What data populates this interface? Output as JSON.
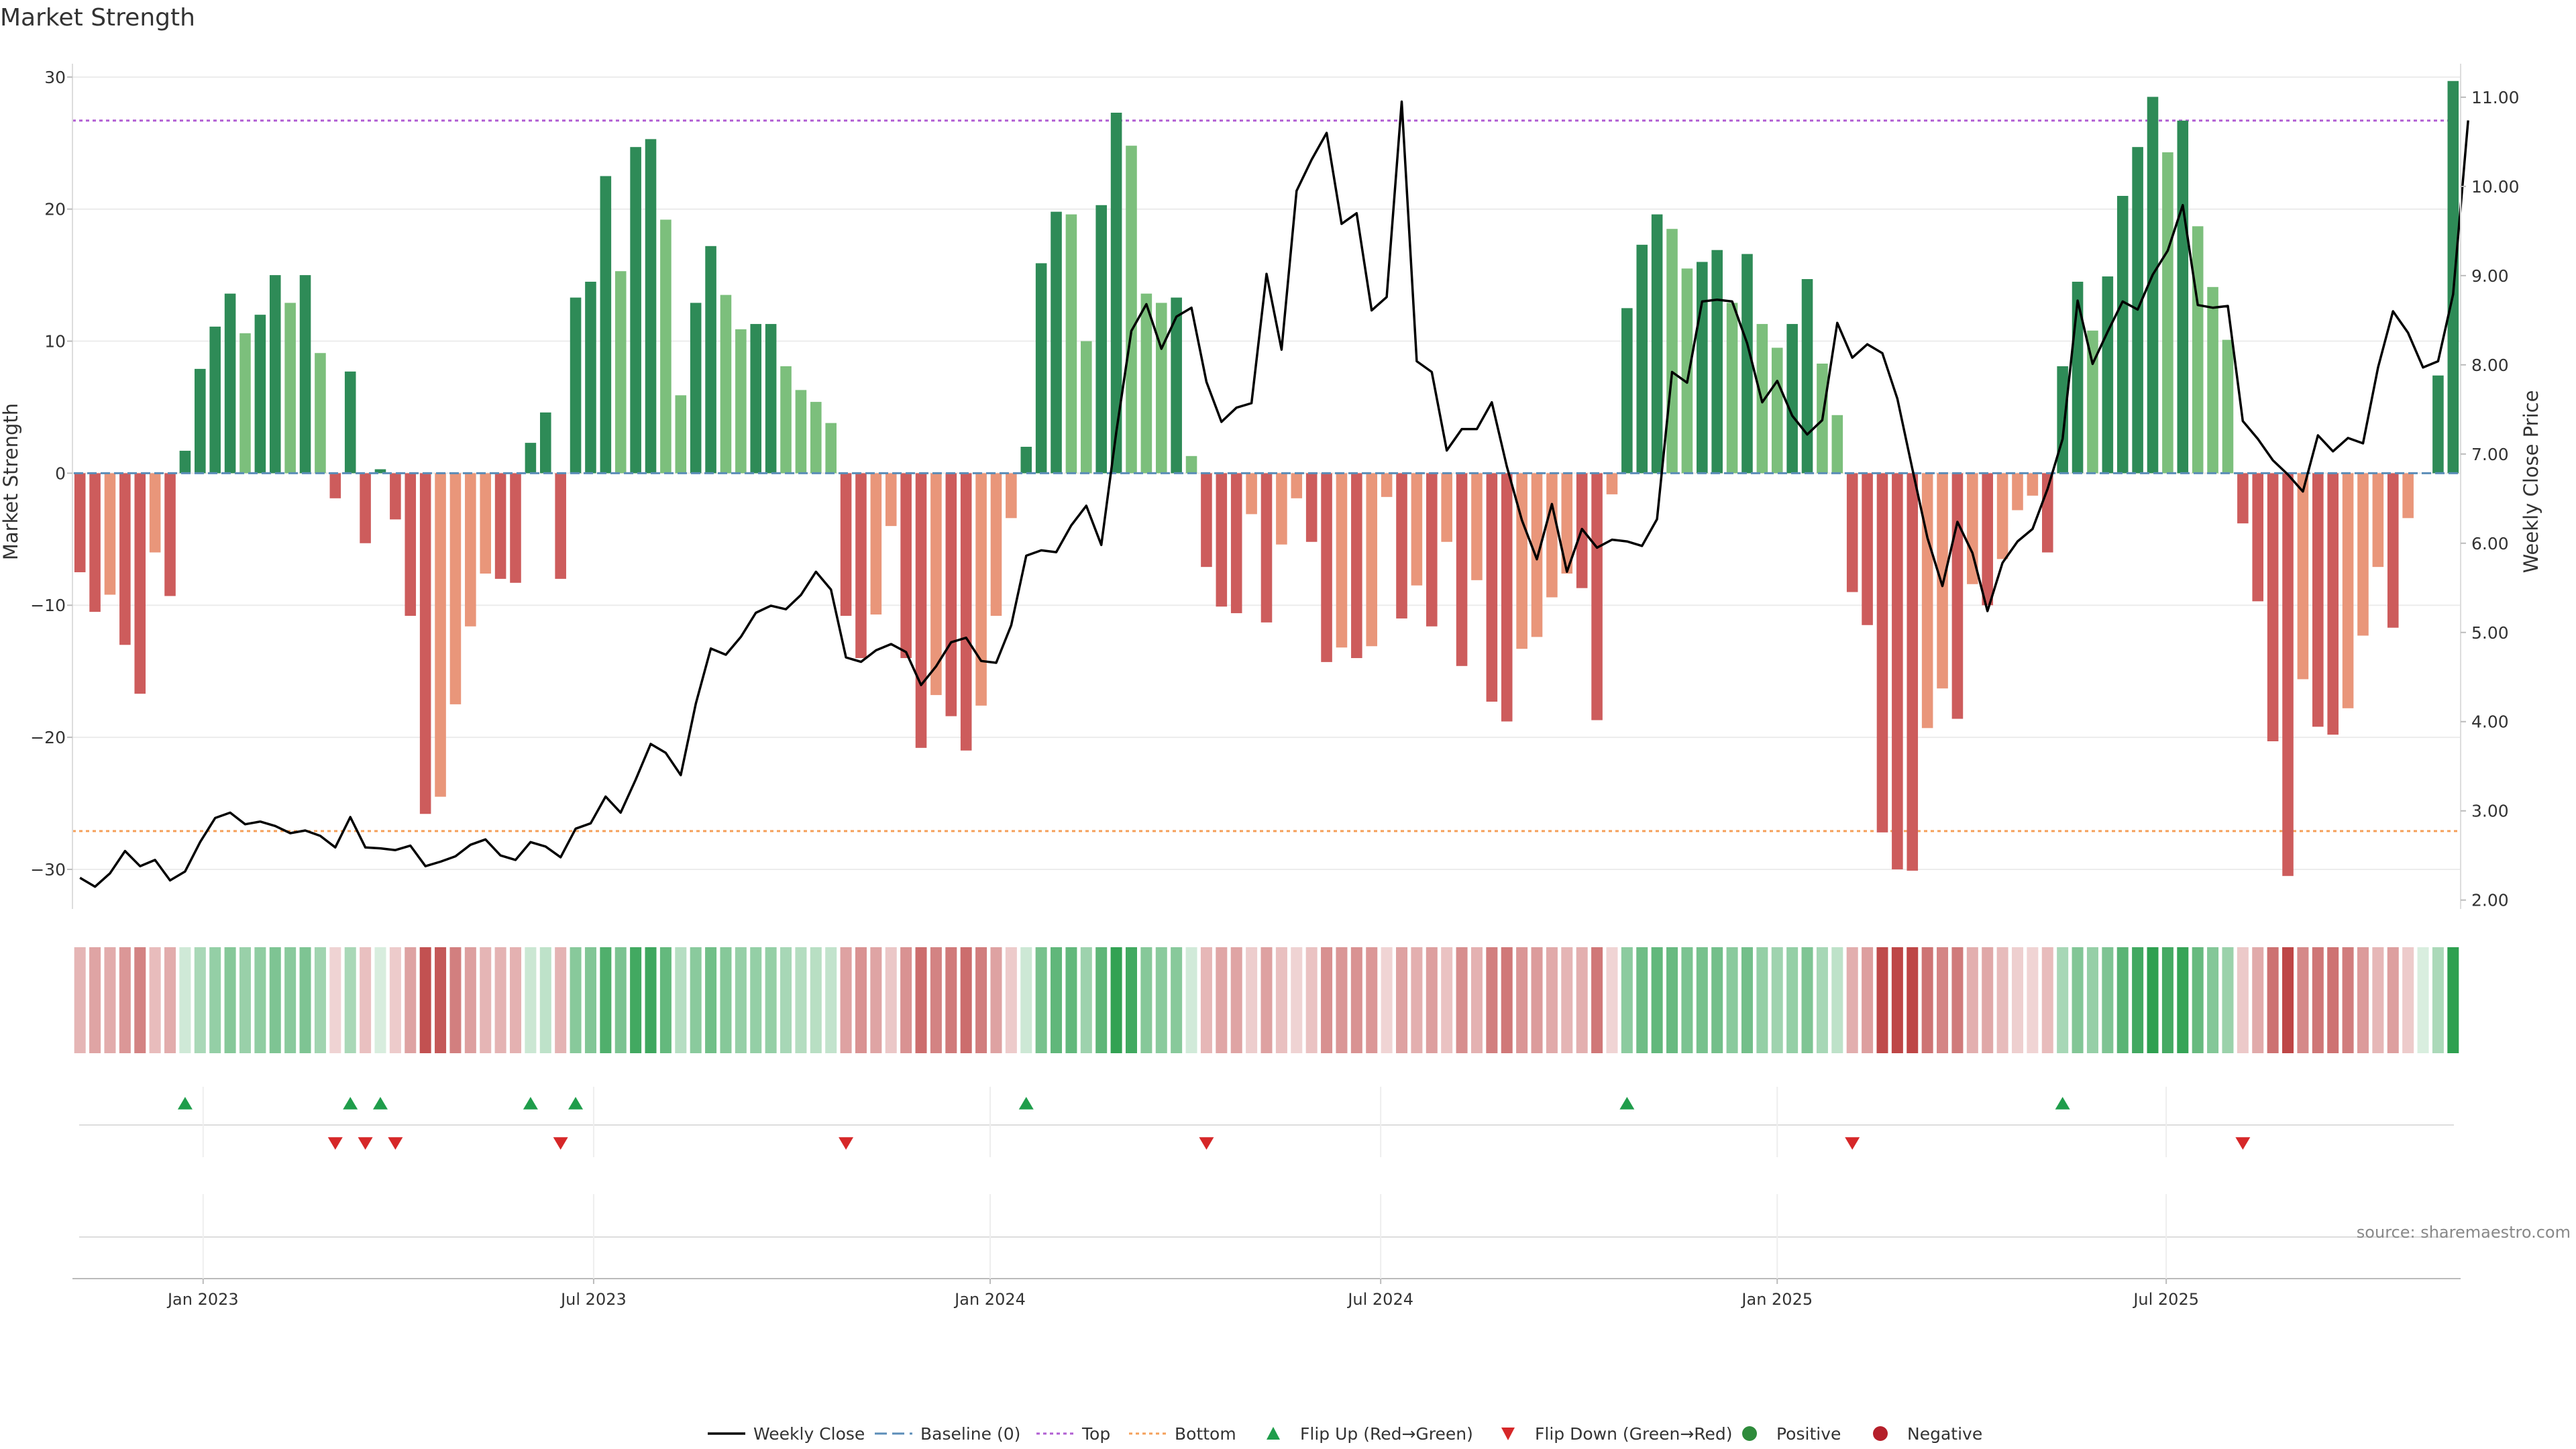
{
  "chart_data": {
    "type": "bar",
    "title": "Market Strength",
    "ylabel_left": "Market Strength",
    "ylabel_right": "Weekly Close Price",
    "left_ylim": [
      -33,
      30.5
    ],
    "left_ticks": [
      -30,
      -20,
      -10,
      0,
      10,
      20,
      30
    ],
    "left_tick_labels": [
      "−30",
      "−20",
      "−10",
      "0",
      "10",
      "20",
      "30"
    ],
    "right_ylim": [
      1.9,
      11.3
    ],
    "right_ticks": [
      2,
      3,
      4,
      5,
      6,
      7,
      8,
      9,
      10,
      11
    ],
    "right_tick_labels": [
      "2.00",
      "3.00",
      "4.00",
      "5.00",
      "6.00",
      "7.00",
      "8.00",
      "9.00",
      "10.00",
      "11.00"
    ],
    "top_line": 26.7,
    "bottom_line": -27.1,
    "date_ticks": [
      {
        "label": "Jan 2023",
        "week": 8.7
      },
      {
        "label": "Jul 2023",
        "week": 34.7
      },
      {
        "label": "Jan 2024",
        "week": 61.1
      },
      {
        "label": "Jul 2024",
        "week": 87.1
      },
      {
        "label": "Jan 2025",
        "week": 113.5
      },
      {
        "label": "Jul 2025",
        "week": 139.4
      }
    ],
    "strength": [
      -7.5,
      -10.5,
      -9.2,
      -13,
      -16.7,
      -6,
      -9.3,
      1.7,
      7.9,
      11.1,
      13.6,
      10.6,
      12,
      15,
      12.9,
      15,
      9.1,
      -1.9,
      7.7,
      -5.3,
      0.3,
      -3.5,
      -10.8,
      -25.8,
      -24.5,
      -17.5,
      -11.6,
      -7.6,
      -8,
      -8.3,
      2.3,
      4.6,
      -8,
      13.3,
      14.5,
      22.5,
      15.3,
      24.7,
      25.3,
      19.2,
      5.9,
      12.9,
      17.2,
      13.5,
      10.9,
      11.3,
      11.3,
      8.1,
      6.3,
      5.4,
      3.8,
      -10.8,
      -14,
      -10.7,
      -4,
      -14,
      -20.8,
      -16.8,
      -18.4,
      -21,
      -17.6,
      -10.8,
      -3.4,
      2,
      15.9,
      19.8,
      19.6,
      10,
      20.3,
      27.3,
      24.8,
      13.6,
      12.9,
      13.3,
      1.3,
      -7.1,
      -10.1,
      -10.6,
      -3.1,
      -11.3,
      -5.4,
      -1.9,
      -5.2,
      -14.3,
      -13.2,
      -14,
      -13.1,
      -1.8,
      -11,
      -8.5,
      -11.6,
      -5.2,
      -14.6,
      -8.1,
      -17.3,
      -18.8,
      -13.3,
      -12.4,
      -9.4,
      -7.6,
      -8.7,
      -18.7,
      -1.6,
      12.5,
      17.3,
      19.6,
      18.5,
      15.5,
      16,
      16.9,
      12.9,
      16.6,
      11.3,
      9.5,
      11.3,
      14.7,
      8.3,
      4.4,
      -9,
      -11.5,
      -27.2,
      -30,
      -30.1,
      -19.3,
      -16.3,
      -18.6,
      -8.4,
      -10,
      -6.5,
      -2.8,
      -1.7,
      -6,
      8.1,
      14.5,
      10.8,
      14.9,
      21,
      24.7,
      28.5,
      24.3,
      26.7,
      18.7,
      14.1,
      10.1,
      -3.8,
      -9.7,
      -20.3,
      -30.5,
      -15.6,
      -19.2,
      -19.8,
      -17.8,
      -12.3,
      -7.1,
      -11.7,
      -3.4,
      0,
      7.4,
      29.7
    ],
    "close": [
      2.25,
      2.15,
      2.3,
      2.55,
      2.38,
      2.45,
      2.22,
      2.32,
      2.65,
      2.92,
      2.98,
      2.85,
      2.88,
      2.83,
      2.75,
      2.78,
      2.72,
      2.59,
      2.93,
      2.59,
      2.58,
      2.56,
      2.61,
      2.38,
      2.43,
      2.49,
      2.62,
      2.68,
      2.5,
      2.45,
      2.65,
      2.6,
      2.48,
      2.8,
      2.86,
      3.16,
      2.98,
      3.35,
      3.75,
      3.65,
      3.4,
      4.2,
      4.82,
      4.75,
      4.95,
      5.22,
      5.3,
      5.26,
      5.42,
      5.68,
      5.48,
      4.72,
      4.67,
      4.8,
      4.87,
      4.78,
      4.41,
      4.62,
      4.89,
      4.94,
      4.68,
      4.66,
      5.08,
      5.86,
      5.92,
      5.9,
      6.2,
      6.42,
      5.98,
      7.25,
      8.38,
      8.68,
      8.18,
      8.54,
      8.64,
      7.81,
      7.36,
      7.52,
      7.57,
      9.02,
      8.17,
      9.95,
      10.3,
      10.6,
      9.58,
      9.7,
      8.61,
      8.76,
      10.95,
      8.04,
      7.92,
      7.04,
      7.28,
      7.28,
      7.58,
      6.86,
      6.26,
      5.82,
      6.44,
      5.68,
      6.16,
      5.95,
      6.04,
      6.02,
      5.97,
      6.27,
      7.92,
      7.8,
      8.71,
      8.73,
      8.71,
      8.24,
      7.58,
      7.82,
      7.43,
      7.22,
      7.38,
      8.47,
      8.08,
      8.23,
      8.13,
      7.62,
      6.83,
      6.06,
      5.52,
      6.24,
      5.89,
      5.24,
      5.78,
      6.02,
      6.16,
      6.61,
      7.17,
      8.72,
      8.01,
      8.37,
      8.71,
      8.62,
      9.01,
      9.28,
      9.79,
      8.67,
      8.64,
      8.66,
      7.37,
      7.17,
      6.93,
      6.77,
      6.58,
      7.21,
      7.03,
      7.18,
      7.12,
      7.97,
      8.6,
      8.36,
      7.97,
      8.04,
      8.79,
      10.74
    ],
    "series_legend": [
      {
        "name": "Weekly Close",
        "color": "#000000",
        "style": "line"
      },
      {
        "name": "Baseline (0)",
        "color": "#5b8db8",
        "style": "dashed"
      },
      {
        "name": "Top",
        "color": "#b15fd3",
        "style": "dotted"
      },
      {
        "name": "Bottom",
        "color": "#f5a05a",
        "style": "dotted"
      },
      {
        "name": "Flip Up (Red→Green)",
        "color": "#1f9d4b",
        "style": "triangle-up"
      },
      {
        "name": "Flip Down (Green→Red)",
        "color": "#d62728",
        "style": "triangle-down"
      },
      {
        "name": "Positive",
        "color": "#2e8b3b",
        "style": "dot"
      },
      {
        "name": "Negative",
        "color": "#b51f2a",
        "style": "dot"
      }
    ],
    "legend_position": "bottom-center",
    "source": "source: sharemaestro.com"
  },
  "colors": {
    "pos_strong": "#2e8b57",
    "pos_weak": "#7cbf7c",
    "neg_strong": "#cd5c5c",
    "neg_weak": "#e9967a",
    "flip_up": "#1f9d4b",
    "flip_down": "#d62728",
    "top_line": "#b15fd3",
    "bottom_line": "#f5a05a",
    "baseline": "#5b8db8"
  }
}
